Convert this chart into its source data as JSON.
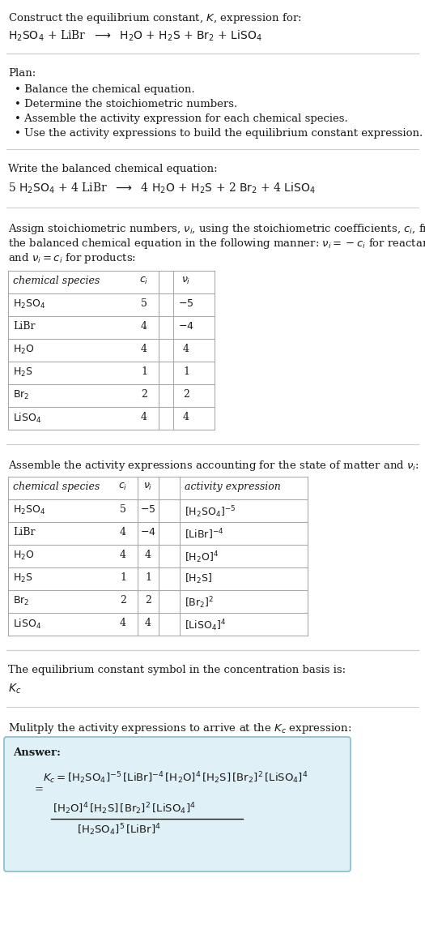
{
  "bg_color": "#ffffff",
  "text_color": "#1a1a1a",
  "line_color": "#cccccc",
  "answer_box_color": "#dff0f7",
  "answer_box_edge": "#88bbcc",
  "title_line1": "Construct the equilibrium constant, $K$, expression for:",
  "title_eq": "$\\mathrm{H_2SO_4}$ + LiBr  $\\longrightarrow$  $\\mathrm{H_2O}$ + $\\mathrm{H_2S}$ + $\\mathrm{Br_2}$ + $\\mathrm{LiSO_4}$",
  "plan_label": "Plan:",
  "plan_items": [
    "Balance the chemical equation.",
    "Determine the stoichiometric numbers.",
    "Assemble the activity expression for each chemical species.",
    "Use the activity expressions to build the equilibrium constant expression."
  ],
  "balanced_label": "Write the balanced chemical equation:",
  "balanced_eq": "5 $\\mathrm{H_2SO_4}$ + 4 LiBr  $\\longrightarrow$  4 $\\mathrm{H_2O}$ + $\\mathrm{H_2S}$ + 2 $\\mathrm{Br_2}$ + 4 $\\mathrm{LiSO_4}$",
  "stoich_label": "Assign stoichiometric numbers, $\\nu_i$, using the stoichiometric coefficients, $c_i$, from\nthe balanced chemical equation in the following manner: $\\nu_i = -c_i$ for reactants\nand $\\nu_i = c_i$ for products:",
  "table1_headers": [
    "chemical species",
    "$c_i$",
    "$\\nu_i$"
  ],
  "table1_rows": [
    [
      "$\\mathrm{H_2SO_4}$",
      "5",
      "$-5$"
    ],
    [
      "LiBr",
      "4",
      "$-4$"
    ],
    [
      "$\\mathrm{H_2O}$",
      "4",
      "4"
    ],
    [
      "$\\mathrm{H_2S}$",
      "1",
      "1"
    ],
    [
      "$\\mathrm{Br_2}$",
      "2",
      "2"
    ],
    [
      "$\\mathrm{LiSO_4}$",
      "4",
      "4"
    ]
  ],
  "activity_label": "Assemble the activity expressions accounting for the state of matter and $\\nu_i$:",
  "table2_headers": [
    "chemical species",
    "$c_i$",
    "$\\nu_i$",
    "activity expression"
  ],
  "table2_rows": [
    [
      "$\\mathrm{H_2SO_4}$",
      "5",
      "$-5$",
      "$[\\mathrm{H_2SO_4}]^{-5}$"
    ],
    [
      "LiBr",
      "4",
      "$-4$",
      "$[\\mathrm{LiBr}]^{-4}$"
    ],
    [
      "$\\mathrm{H_2O}$",
      "4",
      "4",
      "$[\\mathrm{H_2O}]^{4}$"
    ],
    [
      "$\\mathrm{H_2S}$",
      "1",
      "1",
      "$[\\mathrm{H_2S}]$"
    ],
    [
      "$\\mathrm{Br_2}$",
      "2",
      "2",
      "$[\\mathrm{Br_2}]^{2}$"
    ],
    [
      "$\\mathrm{LiSO_4}$",
      "4",
      "4",
      "$[\\mathrm{LiSO_4}]^{4}$"
    ]
  ],
  "kc_label": "The equilibrium constant symbol in the concentration basis is:",
  "kc_symbol": "$K_c$",
  "multiply_label": "Mulitply the activity expressions to arrive at the $K_c$ expression:",
  "answer_label": "Answer:",
  "answer_line1": "$K_c = [\\mathrm{H_2SO_4}]^{-5}\\,[\\mathrm{LiBr}]^{-4}\\,[\\mathrm{H_2O}]^{4}\\,[\\mathrm{H_2S}]\\,[\\mathrm{Br_2}]^{2}\\,[\\mathrm{LiSO_4}]^{4}$",
  "answer_eq_num": "$[\\mathrm{H_2O}]^{4}\\,[\\mathrm{H_2S}]\\,[\\mathrm{Br_2}]^{2}\\,[\\mathrm{LiSO_4}]^{4}$",
  "answer_eq_den": "$[\\mathrm{H_2SO_4}]^{5}\\,[\\mathrm{LiBr}]^{4}$",
  "font_size": 9.5,
  "font_size_eq": 10.0,
  "font_size_table": 9.0
}
